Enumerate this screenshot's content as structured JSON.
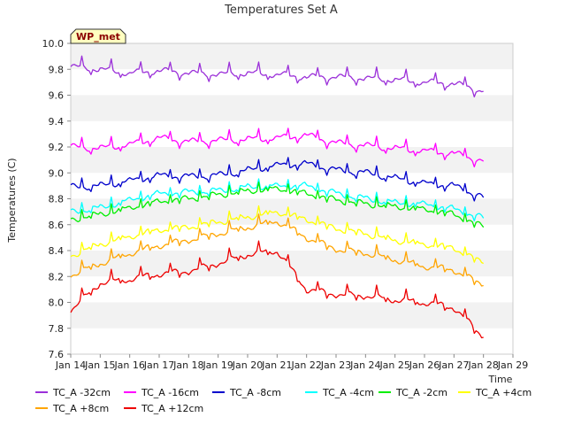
{
  "chart_data": {
    "type": "line",
    "title": "Temperatures Set A",
    "xlabel": "Time",
    "ylabel": "Temperatures (C)",
    "ylim": [
      7.6,
      10.0
    ],
    "y_ticks": [
      "7.6",
      "7.8",
      "8.0",
      "8.2",
      "8.4",
      "8.6",
      "8.8",
      "9.0",
      "9.2",
      "9.4",
      "9.6",
      "9.8",
      "10.0"
    ],
    "x_ticks": [
      "Jan 14",
      "Jan 15",
      "Jan 16",
      "Jan 17",
      "Jan 18",
      "Jan 19",
      "Jan 20",
      "Jan 21",
      "Jan 22",
      "Jan 23",
      "Jan 24",
      "Jan 25",
      "Jan 26",
      "Jan 27",
      "Jan 28",
      "Jan 29"
    ],
    "xlim": [
      "2024-01-14",
      "2024-01-29"
    ],
    "x": [
      "2024-01-14",
      "2024-01-15",
      "2024-01-16",
      "2024-01-17",
      "2024-01-18",
      "2024-01-19",
      "2024-01-20",
      "2024-01-21",
      "2024-01-22",
      "2024-01-23",
      "2024-01-24",
      "2024-01-25",
      "2024-01-26",
      "2024-01-27",
      "2024-01-28"
    ],
    "grid": "horizontal bands",
    "legend": "bottom",
    "badge": "WP_met",
    "series": [
      {
        "name": "TC_A -32cm",
        "color": "#9b30d9",
        "values": [
          9.82,
          9.8,
          9.77,
          9.79,
          9.77,
          9.76,
          9.77,
          9.76,
          9.74,
          9.74,
          9.73,
          9.72,
          9.7,
          9.69,
          9.63
        ]
      },
      {
        "name": "TC_A -16cm",
        "color": "#ff00ff",
        "values": [
          9.2,
          9.19,
          9.22,
          9.27,
          9.24,
          9.25,
          9.26,
          9.27,
          9.29,
          9.23,
          9.21,
          9.19,
          9.17,
          9.15,
          9.09
        ]
      },
      {
        "name": "TC_A -8cm",
        "color": "#0000cc",
        "values": [
          8.89,
          8.9,
          8.94,
          8.98,
          8.97,
          8.98,
          9.02,
          9.06,
          9.07,
          9.02,
          9.0,
          8.96,
          8.92,
          8.9,
          8.81
        ]
      },
      {
        "name": "TC_A -4cm",
        "color": "#00ffff",
        "values": [
          8.7,
          8.73,
          8.79,
          8.84,
          8.85,
          8.86,
          8.89,
          8.9,
          8.9,
          8.84,
          8.8,
          8.77,
          8.76,
          8.72,
          8.65
        ]
      },
      {
        "name": "TC_A -2cm",
        "color": "#00ee00",
        "values": [
          8.64,
          8.68,
          8.73,
          8.78,
          8.8,
          8.83,
          8.86,
          8.88,
          8.84,
          8.79,
          8.76,
          8.74,
          8.72,
          8.68,
          8.58
        ]
      },
      {
        "name": "TC_A +4cm",
        "color": "#ffff00",
        "values": [
          8.36,
          8.45,
          8.51,
          8.56,
          8.58,
          8.62,
          8.66,
          8.7,
          8.64,
          8.57,
          8.53,
          8.48,
          8.45,
          8.42,
          8.3
        ]
      },
      {
        "name": "TC_A +8cm",
        "color": "#ffa500",
        "values": [
          8.21,
          8.3,
          8.38,
          8.44,
          8.48,
          8.53,
          8.58,
          8.63,
          8.5,
          8.41,
          8.38,
          8.33,
          8.28,
          8.25,
          8.13
        ]
      },
      {
        "name": "TC_A +12cm",
        "color": "#ee0000",
        "values": [
          7.94,
          8.15,
          8.18,
          8.22,
          8.24,
          8.3,
          8.37,
          8.4,
          8.1,
          8.06,
          8.05,
          8.02,
          8.0,
          7.96,
          7.73
        ]
      }
    ]
  }
}
